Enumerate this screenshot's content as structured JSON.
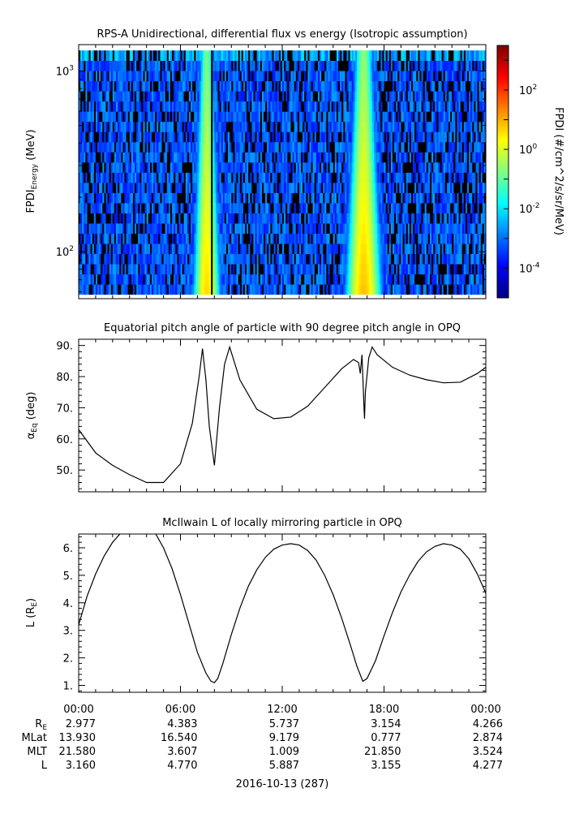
{
  "chart_data": [
    {
      "type": "heatmap",
      "title": "RPS-A Unidirectional, differential flux vs energy (Isotropic assumption)",
      "ylabel_main": "FPDI",
      "ylabel_sub": "Energy",
      "ylabel_unit": "(MeV)",
      "yscale": "log",
      "ylim": [
        55,
        1400
      ],
      "y_ticks": [
        {
          "value": 100,
          "label_base": "10",
          "label_exp": "2"
        },
        {
          "value": 1000,
          "label_base": "10",
          "label_exp": "3"
        }
      ],
      "x_range_hours": [
        0,
        24
      ],
      "energy_channel_range_mev": [
        58,
        1300
      ],
      "colorbar": {
        "label": "FPDI (#/cm^2/s/sr/MeV)",
        "scale": "log",
        "range_log10": [
          -5,
          3.5
        ],
        "ticks": [
          {
            "log10": -4,
            "label_base": "10",
            "label_exp": "-4"
          },
          {
            "log10": -2,
            "label_base": "10",
            "label_exp": "-2"
          },
          {
            "log10": 0,
            "label_base": "10",
            "label_exp": "0"
          },
          {
            "log10": 2,
            "label_base": "10",
            "label_exp": "2"
          }
        ],
        "colormap": [
          "#00007f",
          "#0000ff",
          "#007fff",
          "#00ffff",
          "#7fff7f",
          "#ffff00",
          "#ff7f00",
          "#ff0000",
          "#7f0000"
        ]
      },
      "belt_crossings": [
        {
          "center_hour": 7.55,
          "width_hours": 0.6,
          "peak_log10": 0.6,
          "dropout_hour": 7.85
        },
        {
          "center_hour": 16.8,
          "width_hours": 0.8,
          "peak_log10": 0.8
        }
      ],
      "background_log10": -3.2,
      "nodata_fraction": 0.25
    },
    {
      "type": "line",
      "title": "Equatorial pitch angle of particle with 90 degree pitch angle in OPQ",
      "ylabel_symbol": "α",
      "ylabel_sub": "Eq",
      "ylabel_unit": "(deg)",
      "ylim": [
        43,
        92
      ],
      "y_ticks": [
        50,
        60,
        70,
        80,
        90
      ],
      "y_tick_labels": [
        "50.",
        "60.",
        "70.",
        "80.",
        "90."
      ],
      "x_hours": [
        0,
        1,
        2,
        3,
        4,
        5,
        6,
        6.7,
        7.1,
        7.3,
        7.5,
        7.7,
        8.0,
        8.3,
        8.6,
        8.9,
        9.5,
        10.5,
        11.5,
        12.5,
        13.5,
        14.5,
        15.5,
        16.2,
        16.5,
        16.6,
        16.7,
        16.75,
        16.82,
        16.85,
        16.9,
        17.1,
        17.3,
        17.6,
        18.5,
        19.5,
        20.5,
        21.5,
        22.5,
        23.5,
        24
      ],
      "values": [
        63,
        55.5,
        51.5,
        48.5,
        46,
        46,
        52,
        65,
        80,
        89,
        79,
        64,
        51.5,
        70,
        84,
        89.5,
        79,
        69.5,
        66.5,
        67,
        70.5,
        76.5,
        82.5,
        85.5,
        84.5,
        81,
        87,
        80,
        70,
        66.5,
        75,
        86,
        89.5,
        87,
        83,
        80.5,
        79,
        78,
        78.2,
        81,
        83
      ]
    },
    {
      "type": "line",
      "title": "McIlwain L of locally mirroring particle in OPQ",
      "ylabel_main": "L (R",
      "ylabel_sub": "E",
      "ylabel_end": ")",
      "ylim": [
        0.75,
        6.5
      ],
      "y_ticks": [
        1,
        2,
        3,
        4,
        5,
        6
      ],
      "y_tick_labels": [
        "1.",
        "2.",
        "3.",
        "4.",
        "5.",
        "6."
      ],
      "x_hours": [
        0,
        0.5,
        1,
        1.5,
        2,
        2.5,
        3,
        3.5,
        4,
        4.5,
        5,
        5.5,
        6,
        6.5,
        7,
        7.5,
        7.8,
        8.0,
        8.2,
        8.5,
        9,
        9.5,
        10,
        10.5,
        11,
        11.5,
        12,
        12.5,
        13,
        13.5,
        14,
        14.5,
        15,
        15.5,
        16,
        16.4,
        16.75,
        17.0,
        17.5,
        18,
        18.5,
        19,
        19.5,
        20,
        20.5,
        21,
        21.5,
        22,
        22.5,
        23,
        23.5,
        24
      ],
      "values": [
        3.2,
        4.25,
        5.05,
        5.7,
        6.2,
        6.55,
        6.8,
        6.9,
        6.85,
        6.55,
        6.0,
        5.25,
        4.3,
        3.25,
        2.2,
        1.45,
        1.15,
        1.1,
        1.25,
        1.8,
        2.85,
        3.8,
        4.6,
        5.2,
        5.65,
        5.95,
        6.1,
        6.15,
        6.1,
        5.9,
        5.55,
        5.0,
        4.3,
        3.45,
        2.5,
        1.7,
        1.15,
        1.25,
        1.9,
        2.8,
        3.65,
        4.4,
        5.0,
        5.5,
        5.85,
        6.05,
        6.15,
        6.1,
        5.95,
        5.6,
        5.05,
        4.35
      ]
    }
  ],
  "time_axis": {
    "tick_labels": [
      "00:00",
      "06:00",
      "12:00",
      "18:00",
      "00:00"
    ],
    "tick_hours": [
      0,
      6,
      12,
      18,
      24
    ],
    "minor_step_hours": 1
  },
  "ephemeris": {
    "rows": [
      {
        "label_main": "R",
        "label_sub": "E",
        "values": [
          "2.977",
          "4.383",
          "5.737",
          "3.154",
          "4.266"
        ]
      },
      {
        "label_main": "MLat",
        "label_sub": "",
        "values": [
          "13.930",
          "16.540",
          "9.179",
          "0.777",
          "2.874"
        ]
      },
      {
        "label_main": "MLT",
        "label_sub": "",
        "values": [
          "21.580",
          "3.607",
          "1.009",
          "21.850",
          "3.524"
        ]
      },
      {
        "label_main": "L",
        "label_sub": "",
        "values": [
          "3.160",
          "4.770",
          "5.887",
          "3.155",
          "4.277"
        ]
      }
    ]
  },
  "date_label": "2016-10-13 (287)"
}
